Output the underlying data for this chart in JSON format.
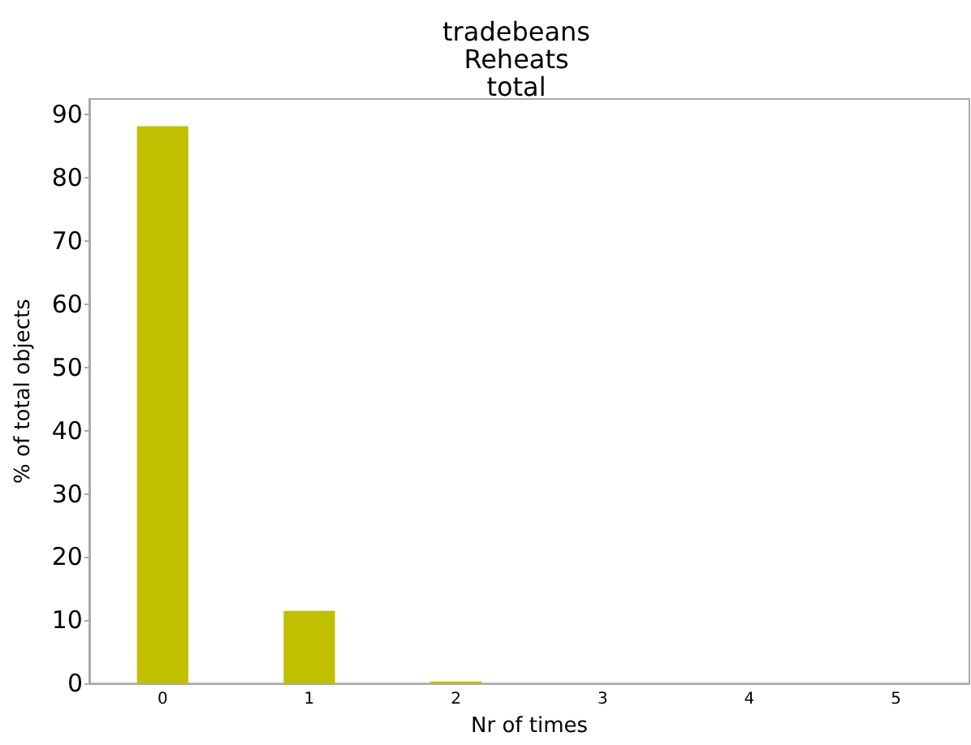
{
  "chart_data": {
    "type": "bar",
    "title": "tradebeans\nReheats\ntotal",
    "xlabel": "Nr of times",
    "ylabel": "% of total objects",
    "categories": [
      "0",
      "1",
      "2",
      "3",
      "4",
      "5"
    ],
    "values": [
      88.2,
      11.5,
      0.3,
      0,
      0,
      0
    ],
    "color": "#c0bf00",
    "ylim": [
      0,
      92.5
    ],
    "yticks": [
      0,
      10,
      20,
      30,
      40,
      50,
      60,
      70,
      80,
      90
    ],
    "grid": false
  }
}
